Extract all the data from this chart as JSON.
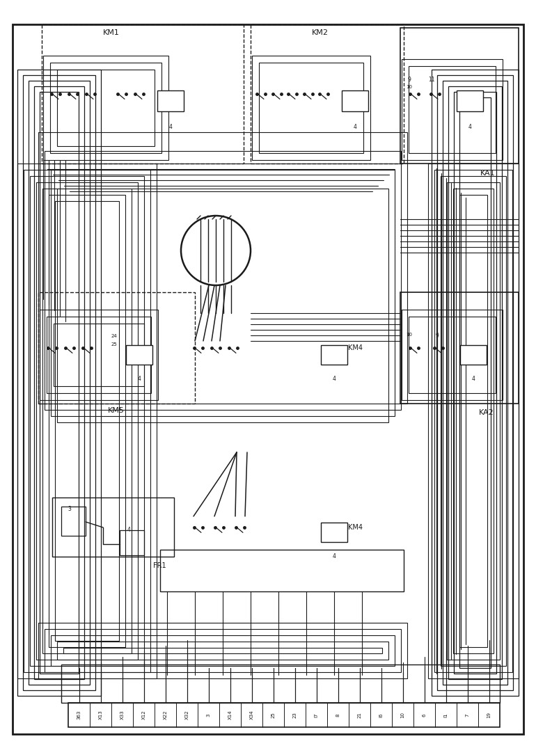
{
  "bg_color": "#ffffff",
  "line_color": "#1a1a1a",
  "fig_width": 7.7,
  "fig_height": 10.75,
  "terminal_labels": [
    "363",
    "X13",
    "X33",
    "X12",
    "X22",
    "X32",
    "3",
    "X14",
    "X34",
    "25",
    "23",
    "I7",
    "8",
    "21",
    "I6",
    "10",
    "6",
    "I1",
    "7",
    "19"
  ]
}
